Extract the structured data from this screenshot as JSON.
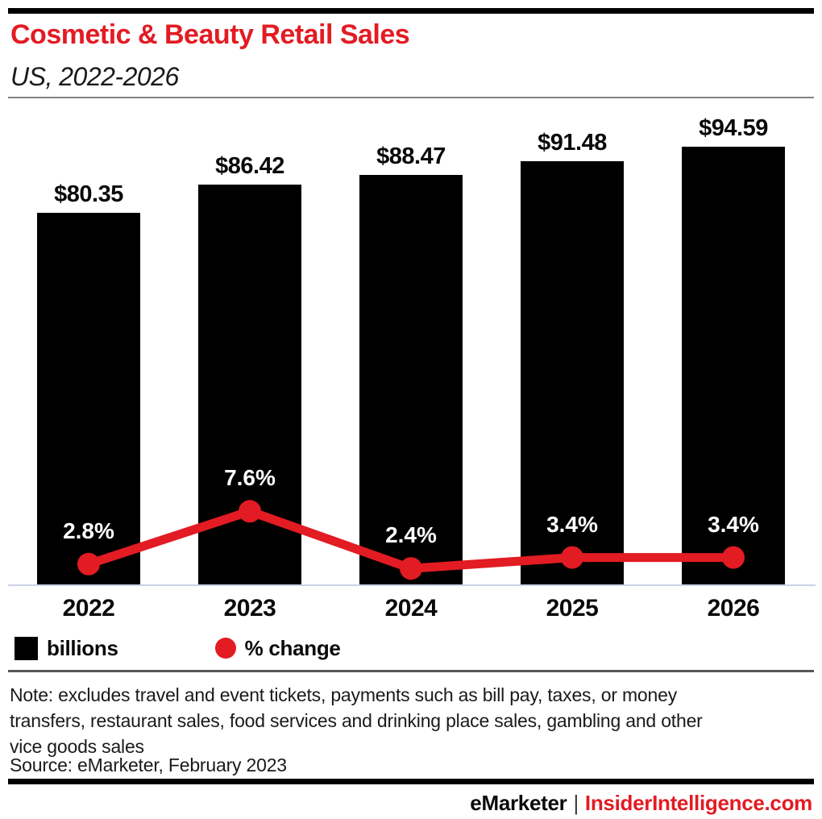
{
  "page": {
    "title": "Cosmetic & Beauty Retail Sales",
    "subtitle": "US, 2022-2026",
    "note_lines": [
      "Note: excludes travel and event tickets, payments such as bill pay, taxes, or money",
      "transfers, restaurant sales, food services and drinking place sales, gambling and other",
      "vice goods sales"
    ],
    "source": "Source: eMarketer, February 2023",
    "footer": {
      "brand": "eMarketer",
      "separator": "|",
      "site": "InsiderIntelligence.com"
    }
  },
  "legend": {
    "items": [
      {
        "label": "billions",
        "shape": "square",
        "color": "#000000"
      },
      {
        "label": "% change",
        "shape": "circle",
        "color": "#e31b23"
      }
    ]
  },
  "colors": {
    "accent_red": "#e31b23",
    "bar_black": "#000000",
    "axis_line": "#ccd3e6",
    "divider_gray": "#55565a"
  },
  "chart_data": {
    "type": "bar",
    "title": "Cosmetic & Beauty Retail Sales",
    "subtitle": "US, 2022-2026",
    "categories": [
      "2022",
      "2023",
      "2024",
      "2025",
      "2026"
    ],
    "series": [
      {
        "name": "billions",
        "type": "bar",
        "values": [
          80.35,
          86.42,
          88.47,
          91.48,
          94.59
        ],
        "labels": [
          "$80.35",
          "$86.42",
          "$88.47",
          "$91.48",
          "$94.59"
        ],
        "color": "#000000"
      },
      {
        "name": "% change",
        "type": "line",
        "values": [
          2.8,
          7.6,
          2.4,
          3.4,
          3.4
        ],
        "labels": [
          "2.8%",
          "7.6%",
          "2.4%",
          "3.4%",
          "3.4%"
        ],
        "color": "#e31b23"
      }
    ],
    "xlabel": "",
    "ylabel": "",
    "legend_position": "bottom-left",
    "grid": false
  }
}
